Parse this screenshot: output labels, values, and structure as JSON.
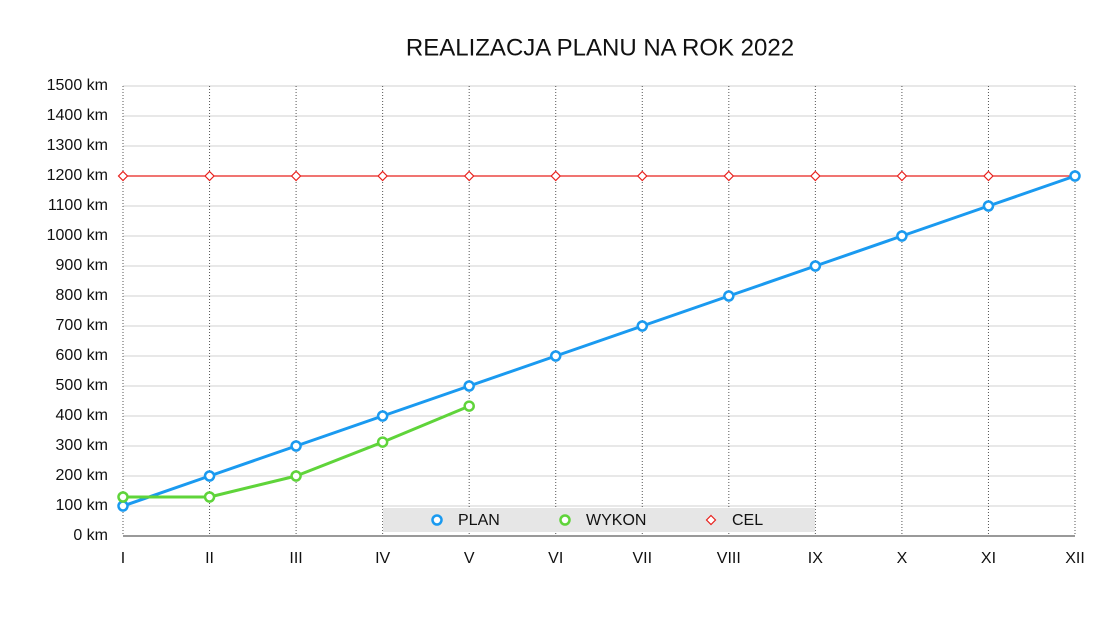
{
  "chart_data": {
    "type": "line",
    "title": "REALIZACJA PLANU NA ROK 2022",
    "categories": [
      "I",
      "II",
      "III",
      "IV",
      "V",
      "VI",
      "VII",
      "VIII",
      "IX",
      "X",
      "XI",
      "XII"
    ],
    "series": [
      {
        "name": "PLAN",
        "color": "#1a9af0",
        "marker": "circle",
        "values": [
          100,
          200,
          300,
          400,
          500,
          600,
          700,
          800,
          900,
          1000,
          1100,
          1200
        ]
      },
      {
        "name": "WYKON",
        "color": "#5fd43a",
        "marker": "circle",
        "values": [
          130,
          130,
          200,
          313,
          433,
          null,
          null,
          null,
          null,
          null,
          null,
          null
        ]
      },
      {
        "name": "CEL",
        "color": "#e8201c",
        "marker": "diamond",
        "values": [
          1200,
          1200,
          1200,
          1200,
          1200,
          1200,
          1200,
          1200,
          1200,
          1200,
          1200,
          1200
        ]
      }
    ],
    "ylim": [
      0,
      1500
    ],
    "yticks": [
      {
        "value": 0,
        "label": "0 km"
      },
      {
        "value": 100,
        "label": "100 km"
      },
      {
        "value": 200,
        "label": "200 km"
      },
      {
        "value": 300,
        "label": "300 km"
      },
      {
        "value": 400,
        "label": "400 km"
      },
      {
        "value": 500,
        "label": "500 km"
      },
      {
        "value": 600,
        "label": "600 km"
      },
      {
        "value": 700,
        "label": "700 km"
      },
      {
        "value": 800,
        "label": "800 km"
      },
      {
        "value": 900,
        "label": "900 km"
      },
      {
        "value": 1000,
        "label": "1000 km"
      },
      {
        "value": 1100,
        "label": "1100 km"
      },
      {
        "value": 1200,
        "label": "1200 km"
      },
      {
        "value": 1300,
        "label": "1300 km"
      },
      {
        "value": 1400,
        "label": "1400 km"
      },
      {
        "value": 1500,
        "label": "1500 km"
      }
    ],
    "grid": true,
    "legend": "bottom"
  }
}
